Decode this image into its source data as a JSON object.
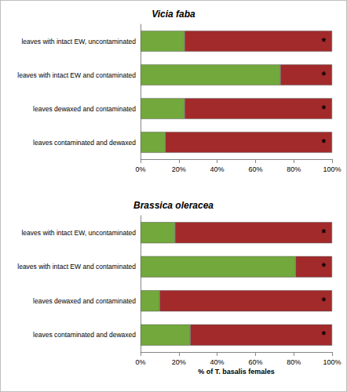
{
  "chart_data": [
    {
      "type": "bar",
      "title": "Vicia faba",
      "orientation": "horizontal",
      "stacked": true,
      "grid": false,
      "categories": [
        "leaves with intact EW, uncontaminated",
        "leaves with intact EW and contaminated",
        "leaves dewaxed and contaminated",
        "leaves contaminated and dewaxed"
      ],
      "series": [
        {
          "color": "#72a83c",
          "values": [
            23,
            73,
            23,
            13
          ]
        },
        {
          "color": "#a32a2b",
          "values": [
            77,
            27,
            77,
            87
          ],
          "annotations": [
            "*",
            "*",
            "*",
            "*"
          ]
        }
      ],
      "xlim": [
        0,
        100
      ],
      "xticks": [
        {
          "value": 0,
          "label": "0%"
        },
        {
          "value": 20,
          "label": "20%"
        },
        {
          "value": 40,
          "label": "40%"
        },
        {
          "value": 60,
          "label": "60%"
        },
        {
          "value": 80,
          "label": "80%"
        },
        {
          "value": 100,
          "label": "100%"
        }
      ]
    },
    {
      "type": "bar",
      "title": "Brassica oleracea",
      "orientation": "horizontal",
      "stacked": true,
      "grid": false,
      "categories": [
        "leaves with intact EW, uncontaminated",
        "leaves with intact EW and contaminated",
        "leaves dewaxed and contaminated",
        "leaves contaminated and dewaxed"
      ],
      "series": [
        {
          "color": "#72a83c",
          "values": [
            18,
            81,
            10,
            26
          ]
        },
        {
          "color": "#a32a2b",
          "values": [
            82,
            19,
            90,
            74
          ],
          "annotations": [
            "*",
            "*",
            "*",
            "*"
          ]
        }
      ],
      "xlim": [
        0,
        100
      ],
      "xticks": [
        {
          "value": 0,
          "label": "0%"
        },
        {
          "value": 20,
          "label": "20%"
        },
        {
          "value": 40,
          "label": "40%"
        },
        {
          "value": 60,
          "label": "60%"
        },
        {
          "value": 80,
          "label": "80%"
        },
        {
          "value": 100,
          "label": "100%"
        }
      ],
      "xlabel": "% of T. basalis females"
    }
  ]
}
